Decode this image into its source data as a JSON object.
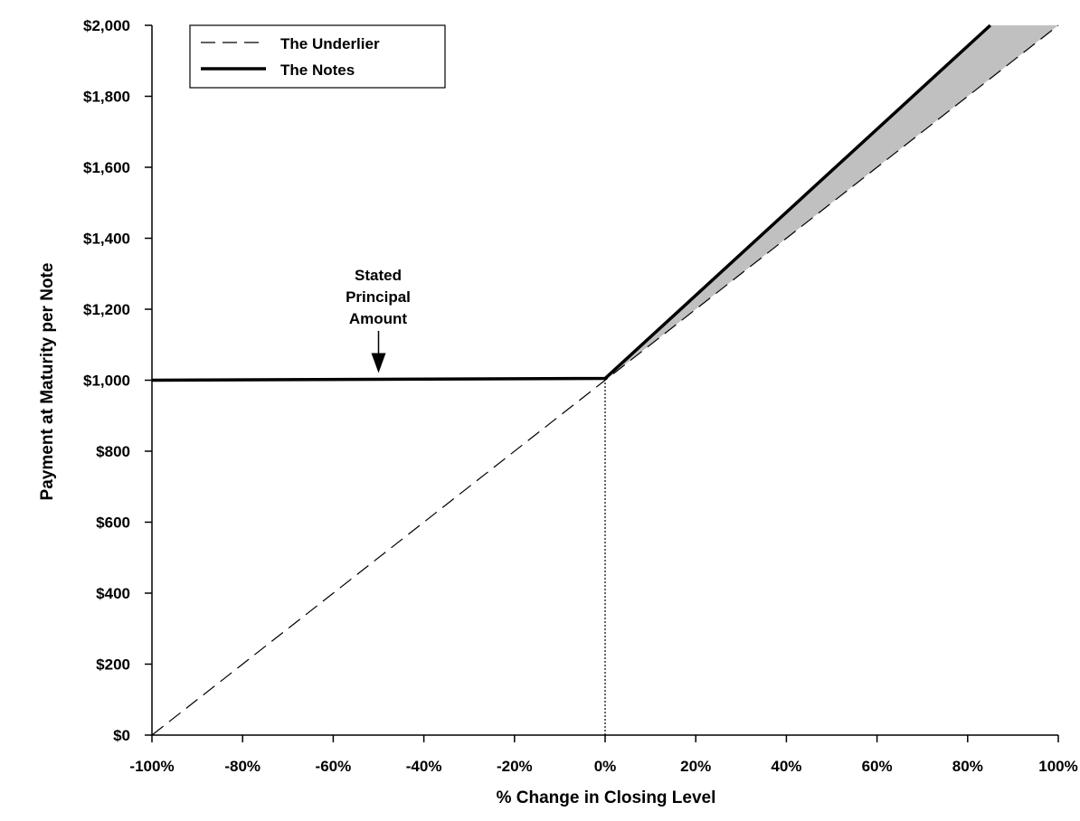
{
  "chart_data": {
    "type": "line",
    "xlabel": "% Change in Closing Level",
    "ylabel": "Payment at Maturity per Note",
    "xlim": [
      -100,
      100
    ],
    "ylim": [
      0,
      2000
    ],
    "x_ticks": [
      {
        "value": -100,
        "label": "-100%"
      },
      {
        "value": -80,
        "label": "-80%"
      },
      {
        "value": -60,
        "label": "-60%"
      },
      {
        "value": -40,
        "label": "-40%"
      },
      {
        "value": -20,
        "label": "-20%"
      },
      {
        "value": 0,
        "label": "0%"
      },
      {
        "value": 20,
        "label": "20%"
      },
      {
        "value": 40,
        "label": "40%"
      },
      {
        "value": 60,
        "label": "60%"
      },
      {
        "value": 80,
        "label": "80%"
      },
      {
        "value": 100,
        "label": "100%"
      }
    ],
    "y_ticks": [
      {
        "value": 0,
        "label": "$0"
      },
      {
        "value": 200,
        "label": "$200"
      },
      {
        "value": 400,
        "label": "$400"
      },
      {
        "value": 600,
        "label": "$600"
      },
      {
        "value": 800,
        "label": "$800"
      },
      {
        "value": 1000,
        "label": "$1,000"
      },
      {
        "value": 1200,
        "label": "$1,200"
      },
      {
        "value": 1400,
        "label": "$1,400"
      },
      {
        "value": 1600,
        "label": "$1,600"
      },
      {
        "value": 1800,
        "label": "$1,800"
      },
      {
        "value": 2000,
        "label": "$2,000"
      }
    ],
    "series": [
      {
        "name": "The Underlier",
        "style": "dashed",
        "color": "#000000",
        "points": [
          [
            -100,
            0
          ],
          [
            0,
            1000
          ],
          [
            100,
            2000
          ]
        ]
      },
      {
        "name": "The Notes",
        "style": "solid-thick",
        "color": "#000000",
        "points": [
          [
            -100,
            1000
          ],
          [
            0,
            1005
          ],
          [
            85,
            2000
          ]
        ]
      }
    ],
    "shaded_region": {
      "color": "#c0c0c0",
      "points": [
        [
          0,
          1000
        ],
        [
          85,
          2000
        ],
        [
          100,
          2000
        ]
      ]
    },
    "reference_line": {
      "x": 0,
      "y_range": [
        0,
        1000
      ],
      "style": "dotted"
    },
    "annotation": {
      "lines": [
        "Stated",
        "Principal",
        "Amount"
      ],
      "arrow_target": [
        -50,
        1000
      ]
    },
    "legend": {
      "position": "top-left",
      "entries": [
        "The Underlier",
        "The Notes"
      ]
    },
    "grid": false
  }
}
